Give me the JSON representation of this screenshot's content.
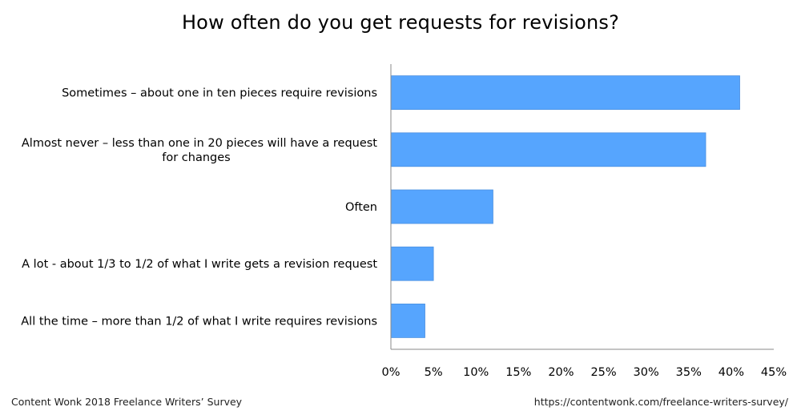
{
  "chart_data": {
    "type": "bar",
    "orientation": "horizontal",
    "title": "How often do you get requests for revisions?",
    "categories": [
      "Sometimes – about one in ten pieces require revisions",
      "Almost never – less than one in 20 pieces will have a request for changes",
      "Often",
      "A lot - about 1/3 to 1/2 of what I write gets a revision request",
      "All the time – more than 1/2 of what I write requires revisions"
    ],
    "category_lines": [
      [
        "Sometimes – about one in ten pieces require revisions"
      ],
      [
        "Almost never – less than one in 20 pieces will have a request",
        "for changes"
      ],
      [
        "Often"
      ],
      [
        "A lot - about 1/3 to 1/2 of what I write gets a revision request"
      ],
      [
        "All the time – more than 1/2 of what I write requires revisions"
      ]
    ],
    "values": [
      41,
      37,
      12,
      5,
      4
    ],
    "xlim": [
      0,
      45
    ],
    "xticks": [
      0,
      5,
      10,
      15,
      20,
      25,
      30,
      35,
      40,
      45
    ],
    "xtick_labels": [
      "0%",
      "5%",
      "10%",
      "15%",
      "20%",
      "25%",
      "30%",
      "35%",
      "40%",
      "45%"
    ],
    "bar_color": "#56a5fe",
    "grid": false,
    "legend": "none"
  },
  "footer": {
    "source": "Content Wonk 2018 Freelance Writers’ Survey",
    "url": "https://contentwonk.com/freelance-writers-survey/"
  }
}
